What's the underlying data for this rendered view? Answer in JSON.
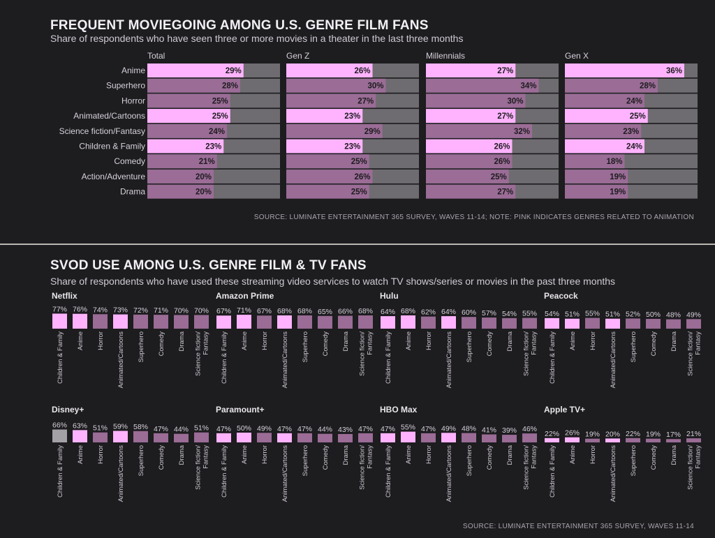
{
  "section1": {
    "title": "FREQUENT MOVIEGOING AMONG U.S. GENRE FILM FANS",
    "subtitle": "Share of respondents who have seen three or more movies in a theater in the last three months",
    "source": "SOURCE: LUMINATE ENTERTAINMENT 365 SURVEY, WAVES 11-14; NOTE: PINK INDICATES GENRES RELATED TO ANIMATION"
  },
  "section2": {
    "title": "SVOD USE AMONG U.S. GENRE FILM & TV FANS",
    "subtitle": "Share of respondents who have used these streaming video services to watch TV shows/series or movies in the past three months",
    "source": "SOURCE: LUMINATE ENTERTAINMENT 365 SURVEY, WAVES 11-14"
  },
  "colors": {
    "background": "#1d1c1f",
    "pink": "#ffb3ff",
    "mauve": "#9a6c96",
    "track": "#6e6c70",
    "gray_bar": "#a3a1a5"
  },
  "chart_data": [
    {
      "type": "bar",
      "orientation": "horizontal",
      "title": "Frequent moviegoing among U.S. genre film fans",
      "xlim": [
        0,
        40
      ],
      "categories": [
        "Anime",
        "Superhero",
        "Horror",
        "Animated/Cartoons",
        "Science fiction/Fantasy",
        "Children & Family",
        "Comedy",
        "Action/Adventure",
        "Drama"
      ],
      "animation_related": [
        true,
        false,
        false,
        true,
        false,
        true,
        false,
        false,
        false
      ],
      "series": [
        {
          "name": "Total",
          "values": [
            29,
            28,
            25,
            25,
            24,
            23,
            21,
            20,
            20
          ],
          "labels": [
            "29%",
            "28%",
            "25%",
            "25%",
            "24%",
            "23%",
            "21%",
            "20%",
            "20%"
          ]
        },
        {
          "name": "Gen Z",
          "values": [
            26,
            30,
            27,
            23,
            29,
            23,
            25,
            26,
            25
          ],
          "labels": [
            "26%",
            "30%",
            "27%",
            "23%",
            "29%",
            "23%",
            "25%",
            "26%",
            "25%"
          ]
        },
        {
          "name": "Millennials",
          "values": [
            27,
            34,
            30,
            27,
            32,
            26,
            26,
            25,
            27
          ],
          "labels": [
            "27%",
            "34%",
            "30%",
            "27%",
            "32%",
            "26%",
            "26%",
            "25%",
            "27%"
          ]
        },
        {
          "name": "Gen X",
          "values": [
            36,
            28,
            24,
            25,
            23,
            24,
            18,
            19,
            19
          ],
          "labels": [
            "36%",
            "28%",
            "24%",
            "25%",
            "23%",
            "24%",
            "18%",
            "19%",
            "19%"
          ]
        }
      ]
    },
    {
      "type": "bar",
      "orientation": "vertical",
      "title": "SVOD use among U.S. genre film & TV fans",
      "categories": [
        "Children & Family",
        "Anime",
        "Horror",
        "Animated/Cartoons",
        "Superhero",
        "Comedy",
        "Drama",
        "Science fiction/ Fantasy"
      ],
      "category_lines": [
        [
          "Children & Family"
        ],
        [
          "Anime"
        ],
        [
          "Horror"
        ],
        [
          "Animated/Cartoons"
        ],
        [
          "Superhero"
        ],
        [
          "Comedy"
        ],
        [
          "Drama"
        ],
        [
          "Science fiction/",
          "Fantasy"
        ]
      ],
      "category_style": [
        "pink",
        "pink",
        "mauve",
        "pink",
        "mauve",
        "mauve",
        "mauve",
        "mauve"
      ],
      "ylim": [
        0,
        100
      ],
      "series": [
        {
          "name": "Netflix",
          "values": [
            77,
            76,
            74,
            73,
            72,
            71,
            70,
            70
          ],
          "labels": [
            "77%",
            "76%",
            "74%",
            "73%",
            "72%",
            "71%",
            "70%",
            "70%"
          ]
        },
        {
          "name": "Amazon Prime",
          "values": [
            67,
            71,
            67,
            68,
            68,
            65,
            66,
            68
          ],
          "labels": [
            "67%",
            "71%",
            "67%",
            "68%",
            "68%",
            "65%",
            "66%",
            "68%"
          ]
        },
        {
          "name": "Hulu",
          "values": [
            64,
            68,
            62,
            64,
            60,
            57,
            54,
            55
          ],
          "labels": [
            "64%",
            "68%",
            "62%",
            "64%",
            "60%",
            "57%",
            "54%",
            "55%"
          ]
        },
        {
          "name": "Peacock",
          "values": [
            54,
            51,
            55,
            51,
            52,
            50,
            48,
            49
          ],
          "labels": [
            "54%",
            "51%",
            "55%",
            "51%",
            "52%",
            "50%",
            "48%",
            "49%"
          ]
        },
        {
          "name": "Disney+",
          "values": [
            66,
            63,
            51,
            59,
            58,
            47,
            44,
            51
          ],
          "labels": [
            "66%",
            "63%",
            "51%",
            "59%",
            "58%",
            "47%",
            "44%",
            "51%"
          ],
          "first_bar_gray": true
        },
        {
          "name": "Paramount+",
          "values": [
            47,
            50,
            49,
            47,
            47,
            44,
            43,
            47
          ],
          "labels": [
            "47%",
            "50%",
            "49%",
            "47%",
            "47%",
            "44%",
            "43%",
            "47%"
          ]
        },
        {
          "name": "HBO Max",
          "values": [
            47,
            55,
            47,
            49,
            48,
            41,
            39,
            46
          ],
          "labels": [
            "47%",
            "55%",
            "47%",
            "49%",
            "48%",
            "41%",
            "39%",
            "46%"
          ]
        },
        {
          "name": "Apple TV+",
          "values": [
            22,
            26,
            19,
            20,
            22,
            19,
            17,
            21
          ],
          "labels": [
            "22%",
            "26%",
            "19%",
            "20%",
            "22%",
            "19%",
            "17%",
            "21%"
          ]
        }
      ]
    }
  ]
}
